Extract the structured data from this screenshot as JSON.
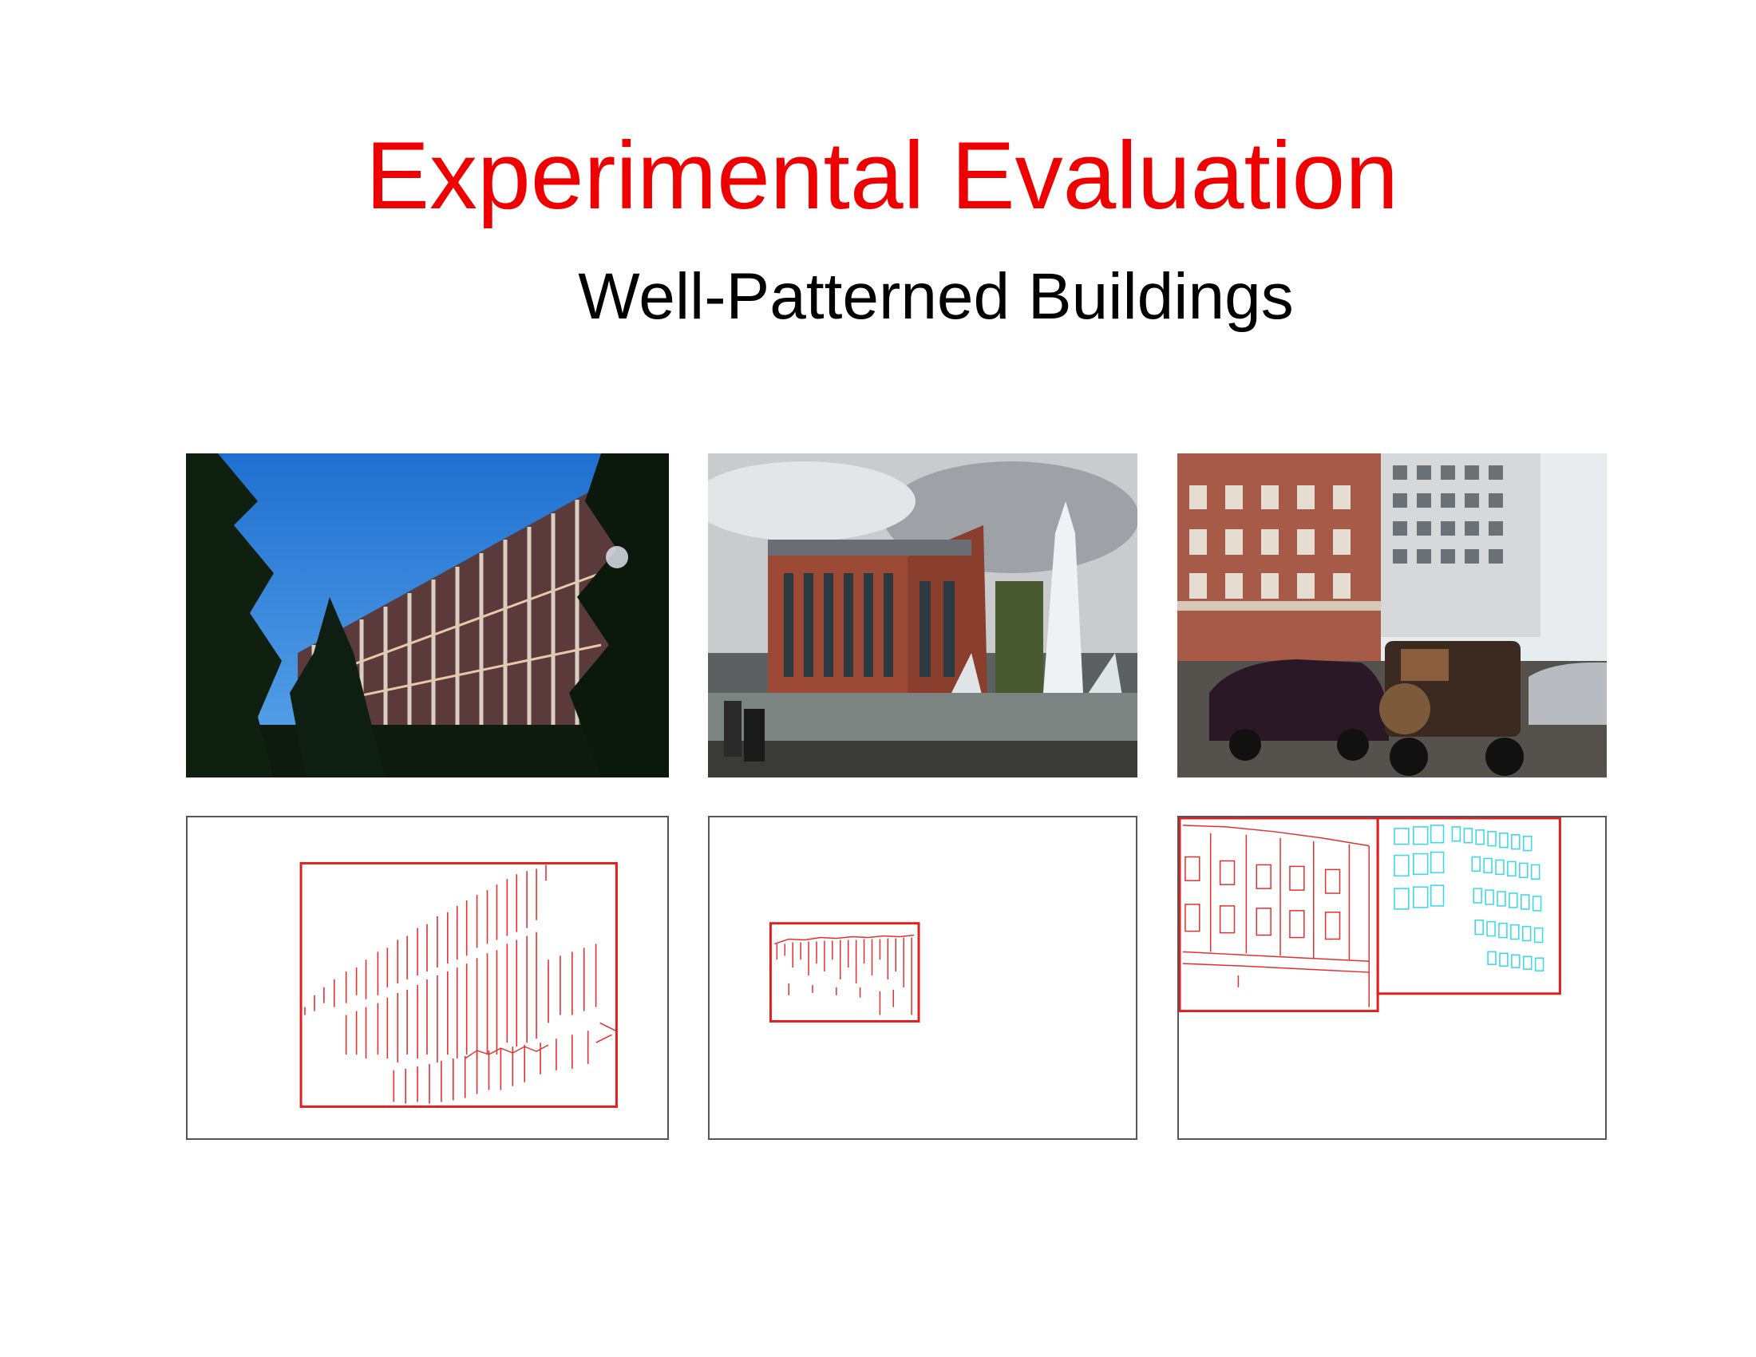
{
  "slide": {
    "title": "Experimental Evaluation",
    "subtitle": "Well-Patterned Buildings"
  },
  "colors": {
    "title": "#ee0000",
    "detection_box": "#e02020",
    "edge_red": "#e03030",
    "edge_cyan": "#40d8e8"
  },
  "figures": [
    {
      "name": "photo-1",
      "kind": "photograph",
      "content": "pattern-facade-building-with-trees"
    },
    {
      "name": "photo-2",
      "kind": "photograph",
      "content": "brick-building-with-fountain"
    },
    {
      "name": "photo-3",
      "kind": "photograph",
      "content": "street-with-buildings-and-cars"
    },
    {
      "name": "edge-map-1",
      "kind": "edge-detection-result"
    },
    {
      "name": "edge-map-2",
      "kind": "edge-detection-result"
    },
    {
      "name": "edge-map-3",
      "kind": "edge-detection-result"
    }
  ]
}
